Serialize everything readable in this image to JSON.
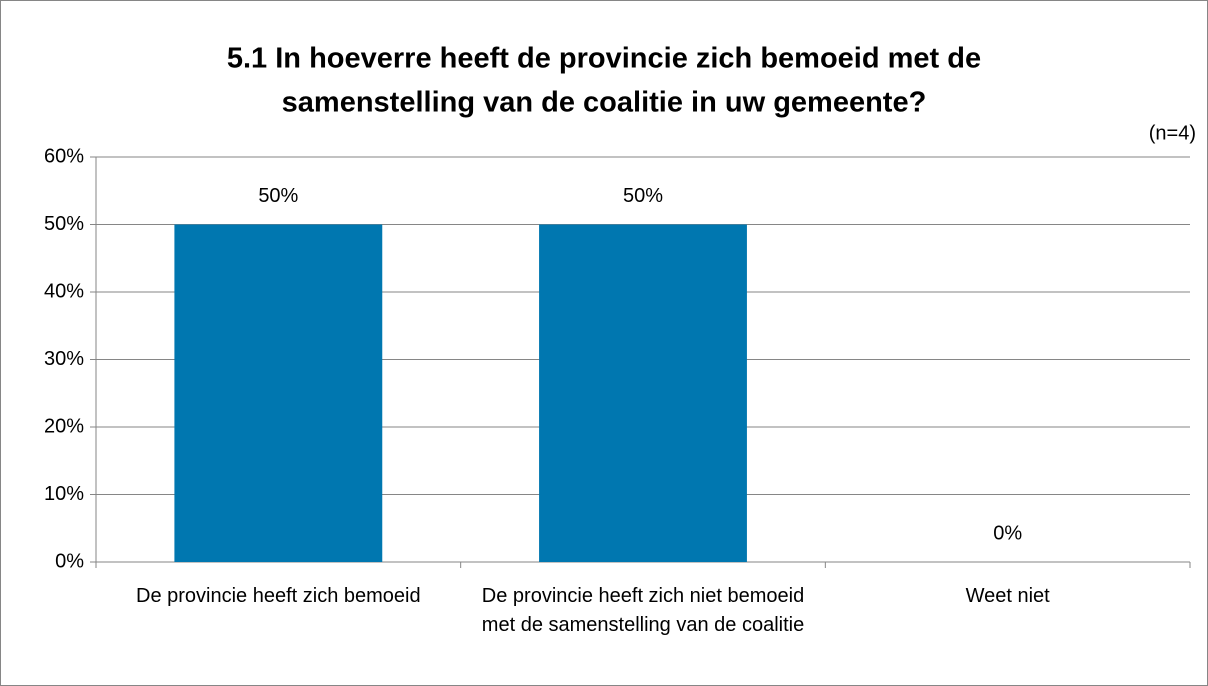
{
  "chart_data": {
    "type": "bar",
    "title": [
      "5.1 In hoeverre heeft de provincie zich bemoeid met de",
      "samenstelling van de coalitie in uw gemeente?"
    ],
    "annotation": "(n=4)",
    "categories": [
      "De provincie heeft zich bemoeid",
      "De provincie heeft zich niet bemoeid met de samenstelling van de coalitie",
      "Weet niet"
    ],
    "values": [
      50,
      50,
      0
    ],
    "value_labels": [
      "50%",
      "50%",
      "0%"
    ],
    "color": "#0077b0",
    "ylim": [
      0,
      60
    ],
    "yticks": [
      {
        "value": 0,
        "label": "0%"
      },
      {
        "value": 10,
        "label": "10%"
      },
      {
        "value": 20,
        "label": "20%"
      },
      {
        "value": 30,
        "label": "30%"
      },
      {
        "value": 40,
        "label": "40%"
      },
      {
        "value": 50,
        "label": "50%"
      },
      {
        "value": 60,
        "label": "60%"
      }
    ],
    "grid": true
  }
}
